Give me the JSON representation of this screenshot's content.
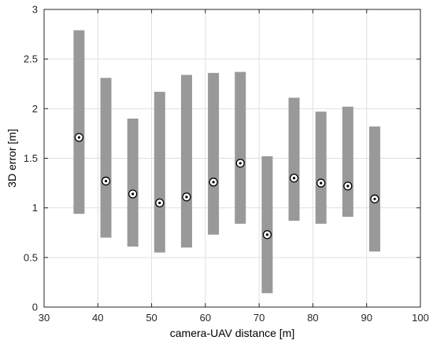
{
  "chart_data": {
    "type": "range-bar",
    "xlabel": "camera-UAV distance [m]",
    "ylabel": "3D error [m]",
    "xlim": [
      30,
      100
    ],
    "ylim": [
      0,
      3
    ],
    "xticks": [
      30,
      40,
      50,
      60,
      70,
      80,
      90,
      100
    ],
    "yticks": [
      0,
      0.5,
      1,
      1.5,
      2,
      2.5,
      3
    ],
    "grid": true,
    "bar_color": "#999999",
    "marker_color": "#000000",
    "points": [
      {
        "x": 36.5,
        "low": 0.94,
        "high": 2.79,
        "mean": 1.71
      },
      {
        "x": 41.5,
        "low": 0.7,
        "high": 2.31,
        "mean": 1.27
      },
      {
        "x": 46.5,
        "low": 0.61,
        "high": 1.9,
        "mean": 1.14
      },
      {
        "x": 51.5,
        "low": 0.55,
        "high": 2.17,
        "mean": 1.05
      },
      {
        "x": 56.5,
        "low": 0.6,
        "high": 2.34,
        "mean": 1.11
      },
      {
        "x": 61.5,
        "low": 0.73,
        "high": 2.36,
        "mean": 1.26
      },
      {
        "x": 66.5,
        "low": 0.84,
        "high": 2.37,
        "mean": 1.45
      },
      {
        "x": 71.5,
        "low": 0.14,
        "high": 1.52,
        "mean": 0.73
      },
      {
        "x": 76.5,
        "low": 0.87,
        "high": 2.11,
        "mean": 1.3
      },
      {
        "x": 81.5,
        "low": 0.84,
        "high": 1.97,
        "mean": 1.25
      },
      {
        "x": 86.5,
        "low": 0.91,
        "high": 2.02,
        "mean": 1.22
      },
      {
        "x": 91.5,
        "low": 0.56,
        "high": 1.82,
        "mean": 1.09
      }
    ]
  }
}
